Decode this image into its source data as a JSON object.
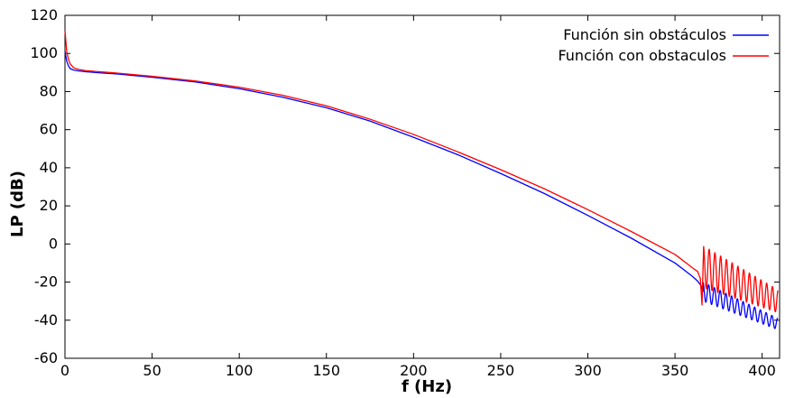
{
  "chart_data": {
    "type": "line",
    "xlabel": "f (Hz)",
    "ylabel": "LP (dB)",
    "xlim": [
      0,
      410
    ],
    "ylim": [
      -60,
      120
    ],
    "xticks": [
      0,
      50,
      100,
      150,
      200,
      250,
      300,
      350,
      400
    ],
    "yticks": [
      -60,
      -40,
      -20,
      0,
      20,
      40,
      60,
      80,
      100,
      120
    ],
    "grid": false,
    "legend_position": "top-right",
    "series": [
      {
        "name": "Función sin obstáculos",
        "color": "#0000ff",
        "x": [
          0,
          1,
          2,
          3,
          5,
          8,
          12,
          20,
          30,
          50,
          75,
          100,
          125,
          150,
          175,
          200,
          225,
          250,
          275,
          300,
          325,
          350,
          360,
          363,
          365,
          366
        ],
        "y": [
          101,
          96,
          93.5,
          92,
          91.3,
          90.8,
          90.4,
          89.8,
          89.2,
          87.5,
          85,
          81.5,
          77,
          71.5,
          64.5,
          56,
          47,
          37,
          26.5,
          15,
          3,
          -10,
          -17,
          -19.5,
          -22,
          -25
        ],
        "oscillation": {
          "x_start": 366,
          "x_end": 409,
          "center_start": -25,
          "center_end": -42,
          "amplitude_start": 5,
          "amplitude_end": 3,
          "period": 3.3
        }
      },
      {
        "name": "Función con obstaculos",
        "color": "#ff0000",
        "x": [
          0,
          1,
          2,
          3,
          5,
          8,
          12,
          20,
          30,
          50,
          75,
          100,
          125,
          150,
          175,
          200,
          225,
          250,
          275,
          300,
          325,
          350,
          360,
          363,
          364.5,
          365.5
        ],
        "y": [
          112,
          101,
          97,
          94.5,
          92.5,
          91.6,
          91,
          90.4,
          89.7,
          88,
          85.5,
          82.3,
          78,
          72.5,
          65.5,
          57.5,
          48.5,
          39,
          29,
          18,
          6.5,
          -5.5,
          -12.5,
          -14.5,
          -18,
          -32
        ],
        "oscillation": {
          "x_start": 366.3,
          "x_end": 409,
          "center_start": -12,
          "center_end": -30,
          "amplitude_start": 11,
          "amplitude_end": 6,
          "period": 3.3
        }
      }
    ]
  }
}
